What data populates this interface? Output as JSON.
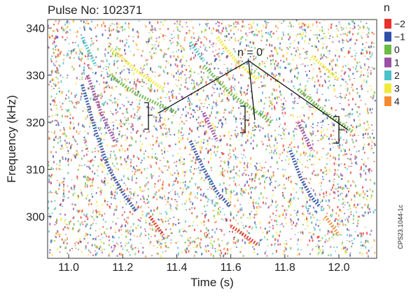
{
  "chart_data": {
    "type": "spectrogram",
    "title": "Pulse No: 102371",
    "x_label": "Time (s)",
    "y_label": "Frequency (kHz)",
    "legend_title": "n",
    "annotation": "n = 0",
    "side_label": "CPS23.1044-1c",
    "xlim": [
      10.922,
      12.14
    ],
    "ylim": [
      291.1,
      341.8
    ],
    "xticks": [
      {
        "value": 11,
        "label": "11.0"
      },
      11.2,
      11.4,
      11.6,
      11.8,
      {
        "value": 12,
        "label": "12.0"
      }
    ],
    "yticks": [
      300,
      310,
      320,
      330,
      340
    ],
    "series": [
      {
        "name": "−2",
        "color": "#e8312b",
        "x": [
          11.3,
          11.35,
          null,
          11.6,
          11.7
        ],
        "values": [
          300,
          296,
          null,
          298,
          294
        ]
      },
      {
        "name": "−1",
        "color": "#2d4fa8",
        "x": [
          11.05,
          11.1,
          11.15,
          11.2,
          11.25,
          null,
          11.45,
          11.5,
          11.55,
          11.6,
          null,
          11.82,
          11.86,
          11.9,
          11.93
        ],
        "values": [
          328,
          318,
          310,
          305,
          301,
          null,
          316,
          310,
          305,
          302,
          null,
          314,
          308,
          304,
          302
        ]
      },
      {
        "name": "0",
        "color": "#6dbb45",
        "x": [
          11.15,
          11.25,
          11.4,
          null,
          11.5,
          11.6,
          11.75,
          null,
          11.85,
          11.95,
          12.05
        ],
        "values": [
          330,
          326,
          322,
          null,
          332,
          326,
          320,
          null,
          327,
          322,
          318
        ]
      },
      {
        "name": "1",
        "color": "#9a4fa6",
        "x": [
          11.07,
          11.12,
          11.17,
          null,
          11.5,
          11.55,
          null,
          11.85,
          11.9
        ],
        "values": [
          330,
          322,
          316,
          null,
          322,
          316,
          null,
          320,
          314
        ]
      },
      {
        "name": "2",
        "color": "#49c1c9",
        "x": [
          11.05,
          11.1,
          null,
          11.45,
          11.5
        ],
        "values": [
          338,
          332,
          null,
          337,
          333
        ]
      },
      {
        "name": "3",
        "color": "#f2ea3b",
        "x": [
          11.15,
          11.25,
          11.35,
          null,
          11.55,
          11.62,
          11.7,
          null,
          11.9,
          12.0
        ],
        "values": [
          336,
          331,
          327,
          null,
          338,
          333,
          329,
          null,
          334,
          329
        ]
      },
      {
        "name": "4",
        "color": "#f58a33",
        "x": [
          11.95,
          12.0
        ],
        "values": [
          300,
          296
        ]
      }
    ]
  }
}
